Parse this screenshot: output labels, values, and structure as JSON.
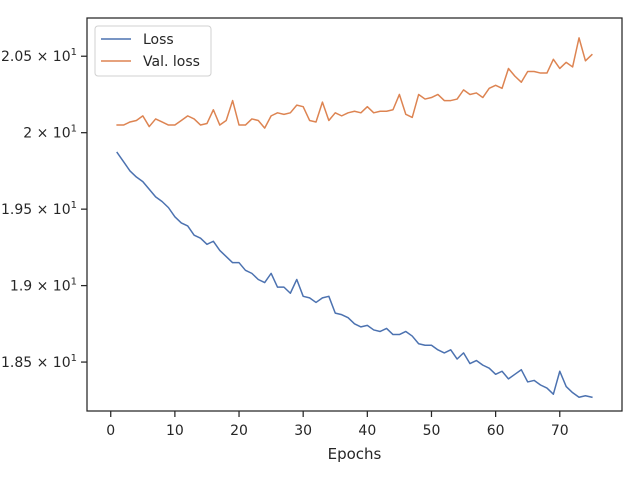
{
  "chart_data": {
    "type": "line",
    "title": "",
    "xlabel": "Epochs",
    "ylabel": "",
    "xlim": [
      -3.7,
      79.7
    ],
    "ylim": [
      18.18,
      20.75
    ],
    "x_ticks": [
      0,
      10,
      20,
      30,
      40,
      50,
      60,
      70
    ],
    "x_tick_labels": [
      "0",
      "10",
      "20",
      "30",
      "40",
      "50",
      "60",
      "70"
    ],
    "y_ticks": [
      18.5,
      19.0,
      19.5,
      20.0,
      20.5
    ],
    "y_tick_labels": [
      {
        "mantissa": "1.85",
        "times": " × 10",
        "exp": "1"
      },
      {
        "mantissa": "1.9",
        "times": " × 10",
        "exp": "1"
      },
      {
        "mantissa": "1.95",
        "times": " × 10",
        "exp": "1"
      },
      {
        "mantissa": "2",
        "times": " × 10",
        "exp": "1"
      },
      {
        "mantissa": "2.05",
        "times": " × 10",
        "exp": "1"
      }
    ],
    "grid": false,
    "legend": "top-left",
    "x": [
      1,
      2,
      3,
      4,
      5,
      6,
      7,
      8,
      9,
      10,
      11,
      12,
      13,
      14,
      15,
      16,
      17,
      18,
      19,
      20,
      21,
      22,
      23,
      24,
      25,
      26,
      27,
      28,
      29,
      30,
      31,
      32,
      33,
      34,
      35,
      36,
      37,
      38,
      39,
      40,
      41,
      42,
      43,
      44,
      45,
      46,
      47,
      48,
      49,
      50,
      51,
      52,
      53,
      54,
      55,
      56,
      57,
      58,
      59,
      60,
      61,
      62,
      63,
      64,
      65,
      66,
      67,
      68,
      69,
      70,
      71,
      72,
      73,
      74,
      75
    ],
    "series": [
      {
        "name": "Loss",
        "color": "#4c72b0",
        "values": [
          19.87,
          19.81,
          19.75,
          19.71,
          19.68,
          19.63,
          19.58,
          19.55,
          19.51,
          19.45,
          19.41,
          19.39,
          19.33,
          19.31,
          19.27,
          19.29,
          19.23,
          19.19,
          19.15,
          19.15,
          19.1,
          19.08,
          19.04,
          19.02,
          19.08,
          18.99,
          18.99,
          18.95,
          19.04,
          18.93,
          18.92,
          18.89,
          18.92,
          18.93,
          18.82,
          18.81,
          18.79,
          18.75,
          18.73,
          18.74,
          18.71,
          18.7,
          18.72,
          18.68,
          18.68,
          18.7,
          18.67,
          18.62,
          18.61,
          18.61,
          18.58,
          18.56,
          18.58,
          18.52,
          18.56,
          18.49,
          18.51,
          18.48,
          18.46,
          18.42,
          18.44,
          18.39,
          18.42,
          18.45,
          18.37,
          18.38,
          18.35,
          18.33,
          18.29,
          18.44,
          18.34,
          18.3,
          18.27,
          18.28,
          18.27
        ]
      },
      {
        "name": "Val. loss",
        "color": "#dd8452",
        "values": [
          20.05,
          20.05,
          20.07,
          20.08,
          20.11,
          20.04,
          20.09,
          20.07,
          20.05,
          20.05,
          20.08,
          20.11,
          20.09,
          20.05,
          20.06,
          20.15,
          20.05,
          20.08,
          20.21,
          20.05,
          20.05,
          20.09,
          20.08,
          20.03,
          20.11,
          20.13,
          20.12,
          20.13,
          20.18,
          20.17,
          20.08,
          20.07,
          20.2,
          20.08,
          20.13,
          20.11,
          20.13,
          20.14,
          20.13,
          20.17,
          20.13,
          20.14,
          20.14,
          20.15,
          20.25,
          20.12,
          20.1,
          20.25,
          20.22,
          20.23,
          20.25,
          20.21,
          20.21,
          20.22,
          20.28,
          20.25,
          20.26,
          20.23,
          20.29,
          20.31,
          20.29,
          20.42,
          20.37,
          20.33,
          20.4,
          20.4,
          20.39,
          20.39,
          20.48,
          20.42,
          20.46,
          20.43,
          20.62,
          20.47,
          20.51
        ]
      }
    ]
  }
}
